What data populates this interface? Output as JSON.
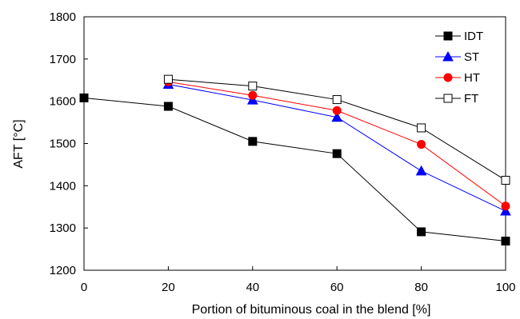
{
  "chart_data": {
    "type": "line",
    "xlabel": "Portion of bituminous coal in the blend [%]",
    "ylabel": "AFT [°C]",
    "xlim": [
      0,
      100
    ],
    "ylim": [
      1200,
      1800
    ],
    "x_ticks": [
      0,
      20,
      40,
      60,
      80,
      100
    ],
    "y_ticks": [
      1200,
      1300,
      1400,
      1500,
      1600,
      1700,
      1800
    ],
    "grid": false,
    "legend_position": "top-right",
    "series": [
      {
        "name": "IDT",
        "marker": "square-filled",
        "color": "#000000",
        "x": [
          0,
          20,
          40,
          60,
          80,
          100
        ],
        "y": [
          1608,
          1588,
          1505,
          1476,
          1291,
          1269
        ]
      },
      {
        "name": "ST",
        "marker": "triangle-filled",
        "color": "#0000ff",
        "x": [
          20,
          40,
          60,
          80,
          100
        ],
        "y": [
          1640,
          1603,
          1562,
          1435,
          1340
        ]
      },
      {
        "name": "HT",
        "marker": "circle-filled",
        "color": "#ff0000",
        "x": [
          20,
          40,
          60,
          80,
          100
        ],
        "y": [
          1646,
          1614,
          1578,
          1498,
          1352
        ]
      },
      {
        "name": "FT",
        "marker": "square-open",
        "color": "#000000",
        "x": [
          20,
          40,
          60,
          80,
          100
        ],
        "y": [
          1652,
          1636,
          1604,
          1537,
          1413
        ]
      }
    ]
  }
}
